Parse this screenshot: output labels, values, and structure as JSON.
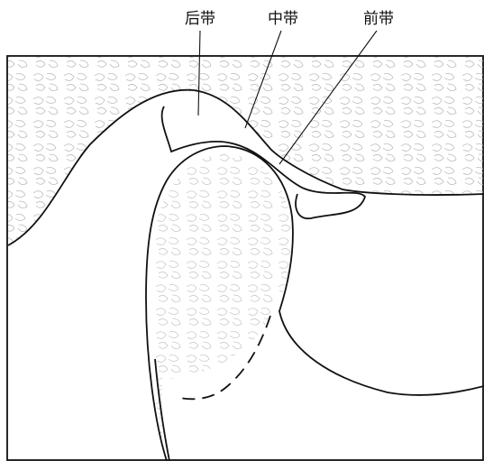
{
  "labels": [
    "后带",
    "中带",
    "前带"
  ]
}
